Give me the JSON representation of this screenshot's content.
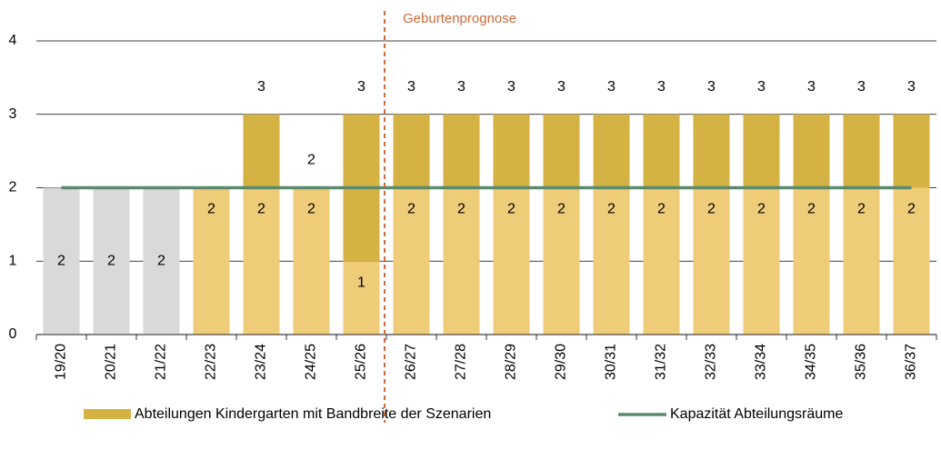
{
  "chart_data": {
    "type": "bar",
    "annotation": "Geburtenprognose",
    "categories": [
      "19/20",
      "20/21",
      "21/22",
      "22/23",
      "23/24",
      "24/25",
      "25/26",
      "26/27",
      "27/28",
      "28/29",
      "29/30",
      "30/31",
      "31/32",
      "32/33",
      "33/34",
      "34/35",
      "35/36",
      "36/37"
    ],
    "bars": {
      "name": "Abteilungen Kindergarten mit Bandbreite der Szenarien",
      "color": "#d4b244",
      "low": [
        2,
        2,
        2,
        2,
        2,
        2,
        1,
        2,
        2,
        2,
        2,
        2,
        2,
        2,
        2,
        2,
        2,
        2
      ],
      "low_colors": [
        "#d9d9d9",
        "#d9d9d9",
        "#d9d9d9",
        "#eecc78",
        "#eecc78",
        "#eecc78",
        "#eecc78",
        "#eecc78",
        "#eecc78",
        "#eecc78",
        "#eecc78",
        "#eecc78",
        "#eecc78",
        "#eecc78",
        "#eecc78",
        "#eecc78",
        "#eecc78",
        "#eecc78"
      ],
      "high": [
        null,
        null,
        null,
        null,
        3,
        2,
        3,
        3,
        3,
        3,
        3,
        3,
        3,
        3,
        3,
        3,
        3,
        3
      ]
    },
    "line": {
      "name": "Kapazität Abteilungsräume",
      "color": "#5b8a6c",
      "values": [
        2,
        2,
        2,
        2,
        2,
        2,
        2,
        2,
        2,
        2,
        2,
        2,
        2,
        2,
        2,
        2,
        2,
        2
      ]
    },
    "ylim": [
      0,
      4
    ],
    "yticks": [
      0,
      1,
      2,
      3,
      4
    ],
    "grid": true,
    "annotation_color": "#d0693a"
  }
}
